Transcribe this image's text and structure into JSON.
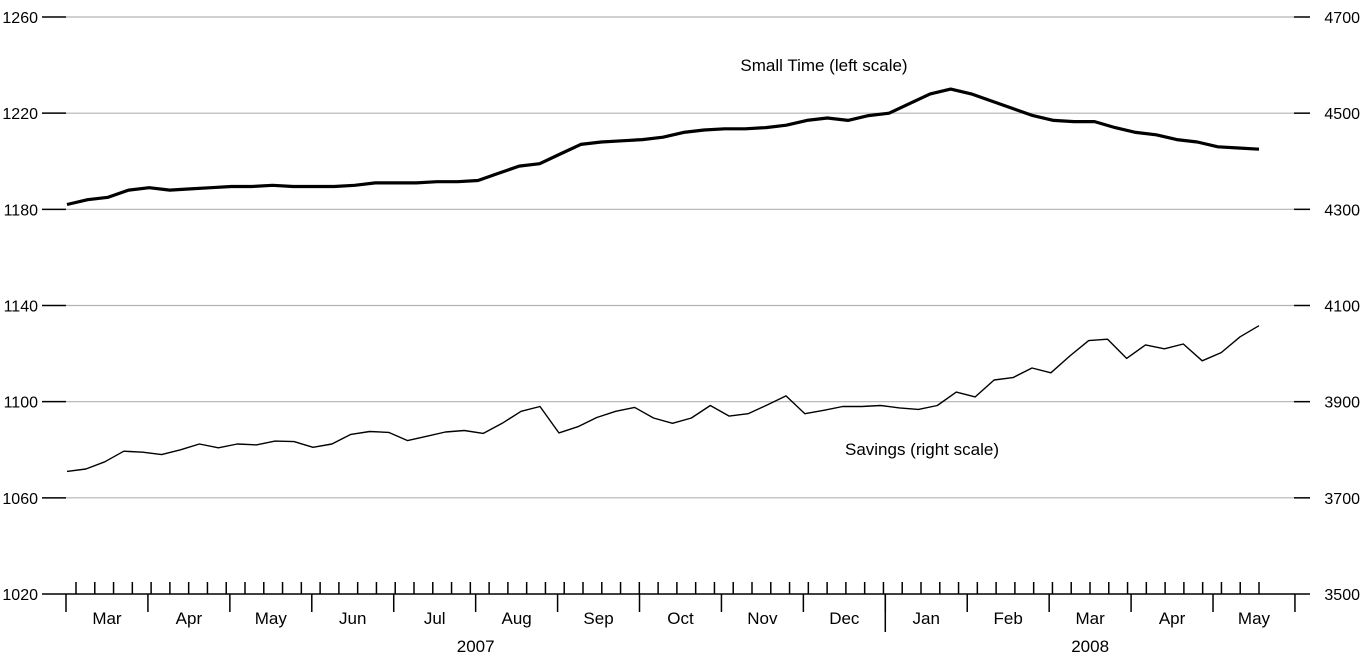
{
  "chart_data": {
    "type": "line",
    "title": "",
    "left_axis": {
      "ylim": [
        1020,
        1260
      ],
      "ticks": [
        1020,
        1060,
        1100,
        1140,
        1180,
        1220,
        1260
      ]
    },
    "right_axis": {
      "ylim": [
        3500,
        4700
      ],
      "ticks": [
        3500,
        3700,
        3900,
        4100,
        4300,
        4500,
        4700
      ]
    },
    "grid": true,
    "x_axis": {
      "months": [
        "Mar",
        "Apr",
        "May",
        "Jun",
        "Jul",
        "Aug",
        "Sep",
        "Oct",
        "Nov",
        "Dec",
        "Jan",
        "Feb",
        "Mar",
        "Apr",
        "May"
      ],
      "years": [
        "2007",
        "2008"
      ]
    },
    "series": [
      {
        "name": "Small Time (left scale)",
        "axis": "left",
        "values": [
          1182,
          1184,
          1185,
          1188,
          1189,
          1188,
          1188.5,
          1189,
          1189.5,
          1189.5,
          1190,
          1189.5,
          1189.5,
          1189.5,
          1190,
          1191,
          1191,
          1191,
          1191.5,
          1191.5,
          1192,
          1195,
          1198,
          1199,
          1203,
          1207,
          1208,
          1208.5,
          1209,
          1210,
          1212,
          1213,
          1213.5,
          1213.5,
          1214,
          1215,
          1217,
          1218,
          1217,
          1219,
          1220,
          1224,
          1228,
          1230,
          1228,
          1225,
          1222,
          1219,
          1217,
          1216.5,
          1216.5,
          1214,
          1212,
          1211,
          1209,
          1208,
          1206,
          1205.5,
          1205
        ]
      },
      {
        "name": "Savings (right scale)",
        "axis": "right",
        "values": [
          3755,
          3760,
          3775,
          3797,
          3795,
          3790,
          3800,
          3812,
          3804,
          3812,
          3810,
          3818,
          3817,
          3805,
          3812,
          3832,
          3838,
          3836,
          3819,
          3828,
          3837,
          3840,
          3834,
          3855,
          3880,
          3890,
          3835,
          3848,
          3867,
          3880,
          3888,
          3866,
          3855,
          3866,
          3892,
          3870,
          3875,
          3893,
          3912,
          3875,
          3882,
          3890,
          3890,
          3892,
          3887,
          3884,
          3892,
          3920,
          3910,
          3945,
          3950,
          3970,
          3960,
          3995,
          4027,
          4030,
          3990,
          4018,
          4010,
          4020,
          3985,
          4002,
          4035,
          4058
        ]
      }
    ],
    "annotations": [
      {
        "text": "Small Time (left scale)",
        "series": 0
      },
      {
        "text": "Savings (right scale)",
        "series": 1
      }
    ]
  }
}
